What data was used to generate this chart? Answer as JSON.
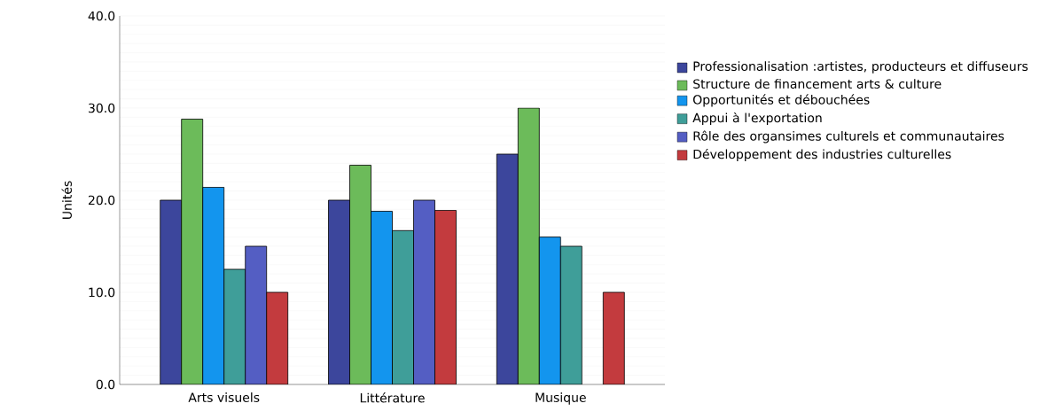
{
  "chart_data": {
    "type": "bar",
    "ylabel": "Unités",
    "categories": [
      "Arts visuels",
      "Littérature",
      "Musique"
    ],
    "series": [
      {
        "name": "Professionalisation :artistes, producteurs et diffuseurs",
        "color": "#3c469c",
        "values": [
          20.0,
          20.0,
          25.0
        ]
      },
      {
        "name": "Structure de financement arts & culture",
        "color": "#6cbb5a",
        "values": [
          28.8,
          23.8,
          30.0
        ]
      },
      {
        "name": "Opportunités et débouchées",
        "color": "#1395ee",
        "values": [
          21.4,
          18.8,
          16.0
        ]
      },
      {
        "name": "Appui à l'exportation",
        "color": "#3f9e99",
        "values": [
          12.5,
          16.7,
          15.0
        ]
      },
      {
        "name": "Rôle des organsimes culturels et communautaires",
        "color": "#545ec3",
        "values": [
          15.0,
          20.0,
          null
        ]
      },
      {
        "name": "Développement des industries culturelles",
        "color": "#c33b3e",
        "values": [
          10.0,
          18.9,
          10.0
        ]
      }
    ],
    "ylim": [
      0,
      40
    ],
    "yticks": [
      {
        "value": 0,
        "label": "0.0"
      },
      {
        "value": 10,
        "label": "10.0"
      },
      {
        "value": 20,
        "label": "20.0"
      },
      {
        "value": 30,
        "label": "30.0"
      },
      {
        "value": 40,
        "label": "40.0"
      }
    ],
    "grid": "y",
    "legend": "right"
  }
}
